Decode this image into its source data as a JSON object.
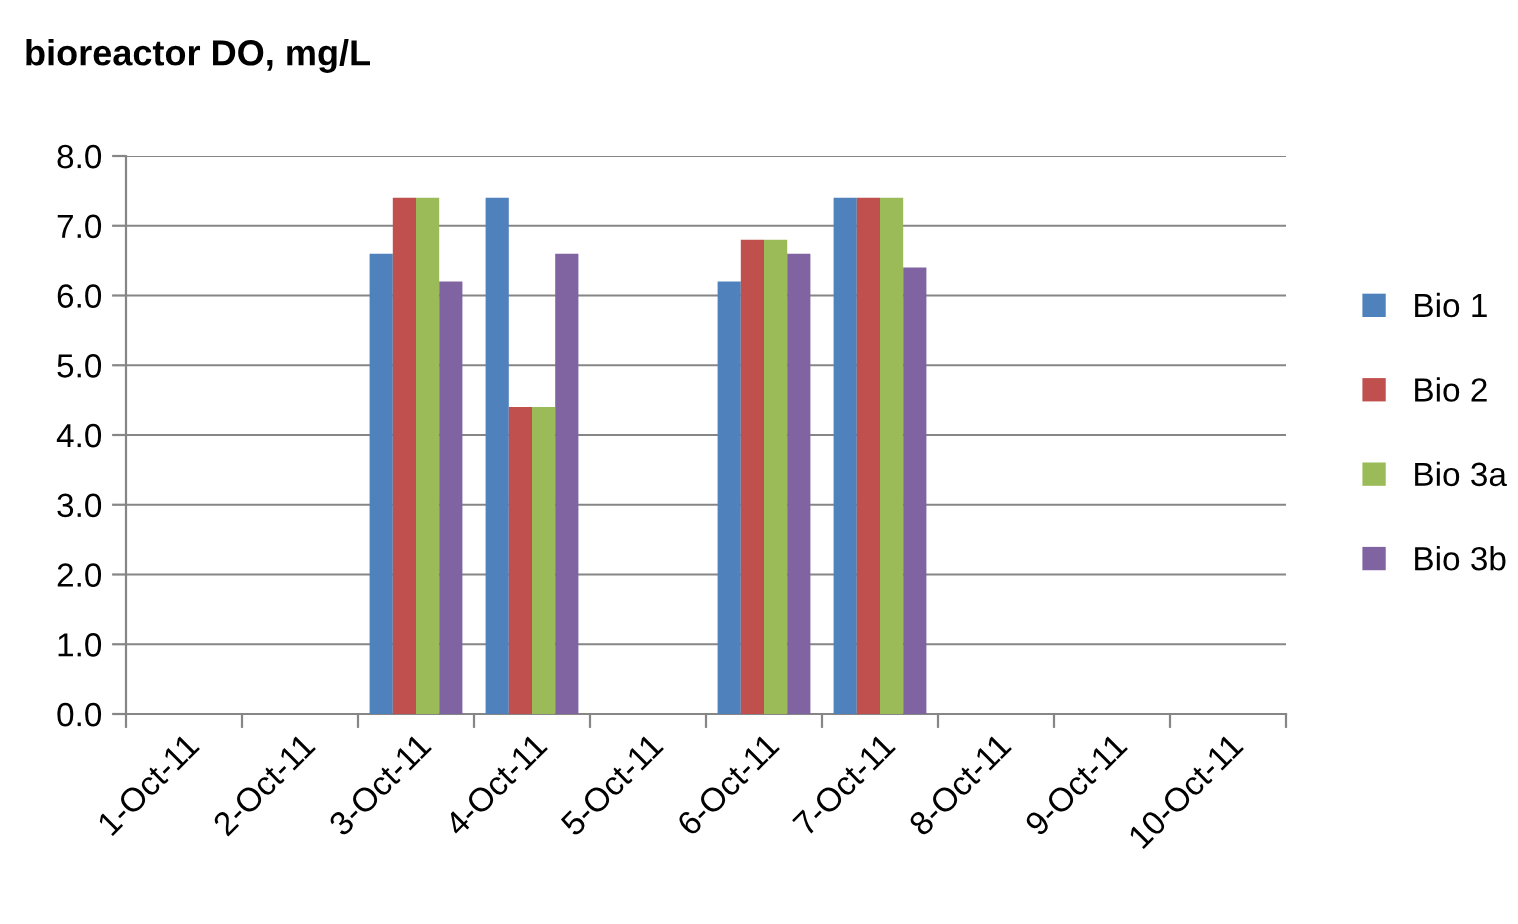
{
  "chart_data": {
    "type": "bar",
    "title": "bioreactor DO, mg/L",
    "categories": [
      "1-Oct-11",
      "2-Oct-11",
      "3-Oct-11",
      "4-Oct-11",
      "5-Oct-11",
      "6-Oct-11",
      "7-Oct-11",
      "8-Oct-11",
      "9-Oct-11",
      "10-Oct-11"
    ],
    "series": [
      {
        "name": "Bio 1",
        "color": "#4f81bd",
        "values": [
          null,
          null,
          6.6,
          7.4,
          null,
          6.2,
          7.4,
          null,
          null,
          null
        ]
      },
      {
        "name": "Bio 2",
        "color": "#c0504d",
        "values": [
          null,
          null,
          7.4,
          4.4,
          null,
          6.8,
          7.4,
          null,
          null,
          null
        ]
      },
      {
        "name": "Bio 3a",
        "color": "#9bbb59",
        "values": [
          null,
          null,
          7.4,
          4.4,
          null,
          6.8,
          7.4,
          null,
          null,
          null
        ]
      },
      {
        "name": "Bio 3b",
        "color": "#8064a2",
        "values": [
          null,
          null,
          6.2,
          6.6,
          null,
          6.6,
          6.4,
          null,
          null,
          null
        ]
      }
    ],
    "ylim": [
      0,
      8
    ],
    "yticks": [
      {
        "value": 0,
        "label": "0.0"
      },
      {
        "value": 1,
        "label": "1.0"
      },
      {
        "value": 2,
        "label": "2.0"
      },
      {
        "value": 3,
        "label": "3.0"
      },
      {
        "value": 4,
        "label": "4.0"
      },
      {
        "value": 5,
        "label": "5.0"
      },
      {
        "value": 6,
        "label": "6.0"
      },
      {
        "value": 7,
        "label": "7.0"
      },
      {
        "value": 8,
        "label": "8.0"
      }
    ],
    "grid": "y",
    "legend": "right"
  }
}
